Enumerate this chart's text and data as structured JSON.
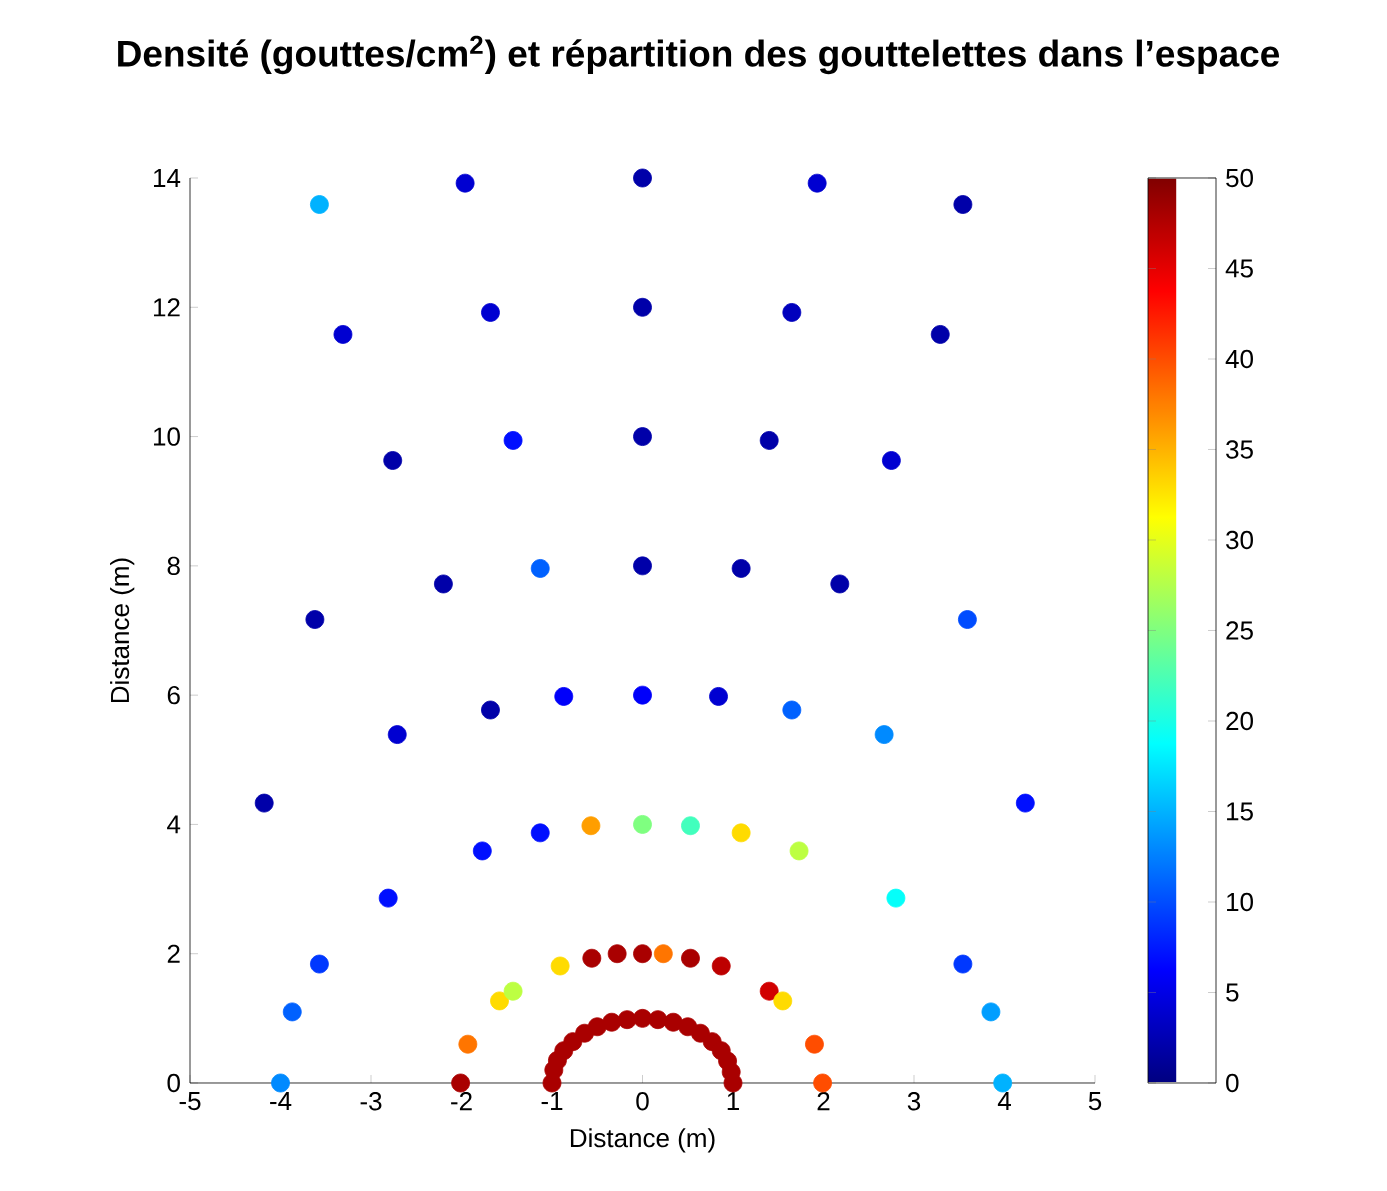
{
  "chart_data": {
    "type": "scatter",
    "title": "Densité (gouttes/cm$^{2}$) et répartition des gouttelettes dans l’espace",
    "xlabel": "Distance (m)",
    "ylabel": "Distance (m)",
    "marker": "circle",
    "x": [
      -3.57,
      -1.96,
      0,
      1.93,
      3.54,
      -3.31,
      -1.68,
      0,
      1.65,
      3.29,
      -2.76,
      -1.43,
      0,
      1.4,
      2.75,
      -3.62,
      -2.2,
      -1.13,
      0,
      1.09,
      2.18,
      3.59,
      -2.71,
      -1.68,
      -0.87,
      0,
      0.84,
      1.65,
      2.67,
      -4.18,
      4.23,
      -2.81,
      -1.77,
      -1.13,
      -0.57,
      0,
      0.53,
      1.09,
      1.73,
      2.8,
      -3.57,
      -3.87,
      -4.0,
      3.54,
      3.85,
      3.98,
      -2.01,
      -1.93,
      -1.58,
      -1.43,
      -0.91,
      -0.56,
      -0.28,
      0,
      0.23,
      0.53,
      0.87,
      1.4,
      1.55,
      1.9,
      1.99,
      -1,
      -0.98,
      -0.94,
      -0.87,
      -0.77,
      -0.64,
      -0.5,
      -0.34,
      -0.17,
      0,
      0.17,
      0.34,
      0.5,
      0.64,
      0.77,
      0.87,
      0.94,
      0.98,
      1
    ],
    "values": [
      13.59,
      13.92,
      14,
      13.92,
      13.59,
      11.58,
      11.92,
      12,
      11.92,
      11.58,
      9.63,
      9.94,
      10,
      9.94,
      9.63,
      7.17,
      7.72,
      7.96,
      8,
      7.96,
      7.72,
      7.17,
      5.39,
      5.77,
      5.98,
      6,
      5.98,
      5.77,
      5.39,
      4.33,
      4.33,
      2.86,
      3.59,
      3.87,
      3.98,
      4,
      3.98,
      3.87,
      3.59,
      2.86,
      1.84,
      1.1,
      0,
      1.84,
      1.1,
      0,
      0,
      0.6,
      1.27,
      1.42,
      1.81,
      1.93,
      2,
      2,
      2,
      1.93,
      1.81,
      1.42,
      1.27,
      0.6,
      0,
      0,
      0.2,
      0.35,
      0.5,
      0.64,
      0.77,
      0.87,
      0.94,
      0.98,
      1,
      0.98,
      0.94,
      0.87,
      0.77,
      0.64,
      0.5,
      0.34,
      0.17,
      0
    ],
    "cvalues": [
      15,
      4,
      2,
      4,
      2,
      4,
      4,
      2,
      3,
      2,
      2,
      7,
      2,
      2,
      4,
      2,
      2,
      11,
      2,
      2,
      2,
      10,
      4,
      2,
      6,
      6,
      4,
      11,
      13,
      2,
      7,
      7,
      7,
      7,
      36,
      25,
      22,
      33,
      28,
      19,
      9,
      11,
      13,
      9,
      14,
      15,
      48,
      38,
      33,
      28,
      33,
      48,
      48,
      48,
      38,
      48,
      47,
      46,
      33,
      40,
      40,
      48,
      48,
      48,
      48,
      48,
      48,
      48,
      48,
      48,
      48,
      48,
      48,
      48,
      48,
      48,
      48,
      48,
      48,
      48
    ],
    "xlim": [
      -5,
      5
    ],
    "ylim": [
      0,
      14
    ],
    "xticks": [
      -5,
      -4,
      -3,
      -2,
      -1,
      0,
      1,
      2,
      3,
      4,
      5
    ],
    "yticks": [
      0,
      2,
      4,
      6,
      8,
      10,
      12,
      14
    ],
    "clim": [
      0,
      50
    ],
    "cticks": [
      0,
      5,
      10,
      15,
      20,
      25,
      30,
      35,
      40,
      45,
      50
    ]
  }
}
